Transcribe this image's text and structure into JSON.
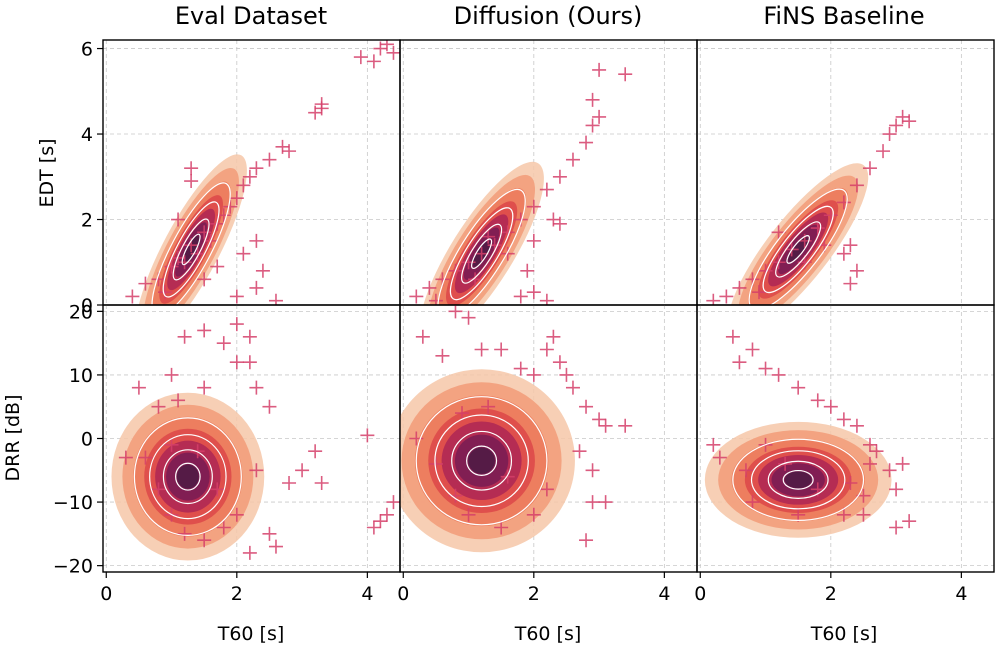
{
  "colors": {
    "density_levels": [
      "#f6c7a8",
      "#f2a07e",
      "#ec7c5d",
      "#de4d4b",
      "#b22a53",
      "#7e1e53",
      "#521b46"
    ],
    "contour_line": "#ffffff",
    "marker": "#d5406a",
    "grid": "#c8c8c8"
  },
  "chart_data": [
    {
      "type": "scatter",
      "panel": "eval-edt",
      "title": "Eval Dataset",
      "xlabel": "",
      "ylabel": "EDT [s]",
      "xlim": [
        -0.05,
        4.5
      ],
      "ylim": [
        0,
        6.2
      ],
      "xticks": [
        0,
        2,
        4
      ],
      "yticks": [
        0,
        2,
        4,
        6
      ],
      "grid": true,
      "density": {
        "center": [
          1.3,
          1.3
        ],
        "spread": [
          0.45,
          0.55
        ],
        "angle_deg": 62,
        "levels": 7
      },
      "points": [
        [
          0.4,
          0.2
        ],
        [
          0.6,
          0.5
        ],
        [
          0.8,
          0.6
        ],
        [
          1.0,
          0.9
        ],
        [
          1.1,
          1.1
        ],
        [
          1.2,
          1.0
        ],
        [
          1.3,
          1.4
        ],
        [
          1.4,
          1.2
        ],
        [
          1.5,
          1.7
        ],
        [
          1.6,
          1.5
        ],
        [
          1.7,
          1.9
        ],
        [
          1.8,
          2.1
        ],
        [
          1.9,
          2.3
        ],
        [
          2.0,
          2.5
        ],
        [
          2.1,
          2.8
        ],
        [
          2.2,
          3.0
        ],
        [
          2.3,
          3.2
        ],
        [
          2.5,
          3.4
        ],
        [
          2.7,
          3.7
        ],
        [
          2.8,
          3.6
        ],
        [
          1.3,
          3.2
        ],
        [
          1.3,
          2.9
        ],
        [
          1.1,
          2.0
        ],
        [
          2.3,
          1.5
        ],
        [
          2.4,
          0.8
        ],
        [
          2.3,
          0.4
        ],
        [
          2.6,
          0.1
        ],
        [
          2.0,
          0.2
        ],
        [
          3.2,
          4.5
        ],
        [
          3.3,
          4.7
        ],
        [
          3.3,
          4.6
        ],
        [
          3.9,
          5.8
        ],
        [
          4.1,
          5.7
        ],
        [
          4.2,
          6.0
        ],
        [
          4.3,
          6.1
        ],
        [
          4.4,
          5.9
        ],
        [
          0.9,
          0.3
        ],
        [
          1.5,
          0.6
        ],
        [
          1.7,
          0.9
        ],
        [
          2.1,
          1.2
        ]
      ]
    },
    {
      "type": "scatter",
      "panel": "diffusion-edt",
      "title": "Diffusion (Ours)",
      "xlabel": "",
      "ylabel": "",
      "xlim": [
        -0.05,
        4.5
      ],
      "ylim": [
        0,
        6.2
      ],
      "xticks": [
        0,
        2,
        4
      ],
      "yticks": [
        0,
        2,
        4,
        6
      ],
      "grid": true,
      "density": {
        "center": [
          1.2,
          1.2
        ],
        "spread": [
          0.5,
          0.55
        ],
        "angle_deg": 58,
        "levels": 7
      },
      "points": [
        [
          0.2,
          0.2
        ],
        [
          0.4,
          0.4
        ],
        [
          0.6,
          0.6
        ],
        [
          0.8,
          0.8
        ],
        [
          1.0,
          1.0
        ],
        [
          1.2,
          1.2
        ],
        [
          1.4,
          1.4
        ],
        [
          1.6,
          1.7
        ],
        [
          1.8,
          2.0
        ],
        [
          2.0,
          2.3
        ],
        [
          2.2,
          2.7
        ],
        [
          2.4,
          3.0
        ],
        [
          2.6,
          3.4
        ],
        [
          2.8,
          3.8
        ],
        [
          2.9,
          4.2
        ],
        [
          3.0,
          4.4
        ],
        [
          2.9,
          4.8
        ],
        [
          3.0,
          5.5
        ],
        [
          3.4,
          5.4
        ],
        [
          2.3,
          2.0
        ],
        [
          2.4,
          1.9
        ],
        [
          2.0,
          1.5
        ],
        [
          1.9,
          0.8
        ],
        [
          2.0,
          0.3
        ],
        [
          1.8,
          0.2
        ],
        [
          2.2,
          0.1
        ],
        [
          0.5,
          0.1
        ],
        [
          1.3,
          1.6
        ],
        [
          1.6,
          1.2
        ],
        [
          1.1,
          0.6
        ]
      ]
    },
    {
      "type": "scatter",
      "panel": "fins-edt",
      "title": "FiNS Baseline",
      "xlabel": "",
      "ylabel": "",
      "xlim": [
        -0.05,
        4.5
      ],
      "ylim": [
        0,
        6.2
      ],
      "xticks": [
        0,
        2,
        4
      ],
      "yticks": [
        0,
        2,
        4,
        6
      ],
      "grid": true,
      "density": {
        "center": [
          1.5,
          1.3
        ],
        "spread": [
          0.5,
          0.55
        ],
        "angle_deg": 52,
        "levels": 7
      },
      "points": [
        [
          0.2,
          0.1
        ],
        [
          0.4,
          0.2
        ],
        [
          0.6,
          0.4
        ],
        [
          0.8,
          0.6
        ],
        [
          1.0,
          0.8
        ],
        [
          1.2,
          1.0
        ],
        [
          1.4,
          1.3
        ],
        [
          1.6,
          1.5
        ],
        [
          1.8,
          1.8
        ],
        [
          2.0,
          2.1
        ],
        [
          2.2,
          2.4
        ],
        [
          2.4,
          2.8
        ],
        [
          2.6,
          3.2
        ],
        [
          2.8,
          3.6
        ],
        [
          2.9,
          4.0
        ],
        [
          3.0,
          4.2
        ],
        [
          3.1,
          4.4
        ],
        [
          3.2,
          4.3
        ],
        [
          2.3,
          1.4
        ],
        [
          2.2,
          1.2
        ],
        [
          2.4,
          0.8
        ],
        [
          2.3,
          0.5
        ],
        [
          1.2,
          1.7
        ],
        [
          0.9,
          0.3
        ],
        [
          1.9,
          1.4
        ],
        [
          1.6,
          1.0
        ]
      ]
    },
    {
      "type": "scatter",
      "panel": "eval-drr",
      "title": "",
      "xlabel": "T60 [s]",
      "ylabel": "DRR [dB]",
      "xlim": [
        -0.05,
        4.5
      ],
      "ylim": [
        -21,
        21
      ],
      "xticks": [
        0,
        2,
        4
      ],
      "yticks": [
        -20,
        -10,
        0,
        10,
        20
      ],
      "grid": true,
      "density": {
        "center": [
          1.25,
          -6.0
        ],
        "spread": [
          0.45,
          5.5
        ],
        "angle_deg": 0,
        "levels": 7
      },
      "points": [
        [
          0.3,
          -3
        ],
        [
          0.5,
          8
        ],
        [
          0.8,
          5
        ],
        [
          1.0,
          10
        ],
        [
          1.2,
          16
        ],
        [
          1.5,
          17
        ],
        [
          1.8,
          15
        ],
        [
          2.0,
          18
        ],
        [
          2.2,
          16
        ],
        [
          2.0,
          12
        ],
        [
          2.2,
          12
        ],
        [
          2.3,
          8
        ],
        [
          2.5,
          5
        ],
        [
          1.5,
          8
        ],
        [
          1.1,
          6
        ],
        [
          0.6,
          -3
        ],
        [
          0.8,
          -8
        ],
        [
          1.0,
          -12
        ],
        [
          1.2,
          -15
        ],
        [
          1.5,
          -16
        ],
        [
          1.8,
          -14
        ],
        [
          2.0,
          -12
        ],
        [
          2.2,
          -18
        ],
        [
          2.5,
          -15
        ],
        [
          2.6,
          -17
        ],
        [
          2.8,
          -7
        ],
        [
          3.0,
          -5
        ],
        [
          3.2,
          -2
        ],
        [
          3.3,
          -7
        ],
        [
          4.0,
          0.5
        ],
        [
          4.1,
          -14
        ],
        [
          4.2,
          -13
        ],
        [
          4.3,
          -12
        ],
        [
          4.4,
          -10
        ],
        [
          1.4,
          -2
        ],
        [
          1.0,
          -1
        ],
        [
          1.7,
          -8
        ],
        [
          2.3,
          -5
        ]
      ]
    },
    {
      "type": "scatter",
      "panel": "diffusion-drr",
      "title": "",
      "xlabel": "T60 [s]",
      "ylabel": "",
      "xlim": [
        -0.05,
        4.5
      ],
      "ylim": [
        -21,
        21
      ],
      "xticks": [
        0,
        2,
        4
      ],
      "yticks": [
        -20,
        -10,
        0,
        10,
        20
      ],
      "grid": true,
      "density": {
        "center": [
          1.2,
          -3.5
        ],
        "spread": [
          0.55,
          6.0
        ],
        "angle_deg": 0,
        "levels": 7
      },
      "points": [
        [
          0.3,
          16
        ],
        [
          0.6,
          13
        ],
        [
          0.8,
          20
        ],
        [
          1.0,
          19
        ],
        [
          1.2,
          14
        ],
        [
          1.5,
          14
        ],
        [
          1.8,
          11
        ],
        [
          2.0,
          10
        ],
        [
          2.2,
          14
        ],
        [
          2.3,
          16
        ],
        [
          2.4,
          12
        ],
        [
          2.5,
          10
        ],
        [
          2.6,
          8
        ],
        [
          2.8,
          5
        ],
        [
          3.0,
          3
        ],
        [
          3.1,
          2
        ],
        [
          3.4,
          2
        ],
        [
          2.7,
          -2
        ],
        [
          2.9,
          -5
        ],
        [
          2.9,
          -10
        ],
        [
          3.1,
          -10
        ],
        [
          2.8,
          -16
        ],
        [
          0.2,
          0
        ],
        [
          0.5,
          -4
        ],
        [
          0.8,
          -9
        ],
        [
          1.0,
          -12
        ],
        [
          1.5,
          -14
        ],
        [
          2.0,
          -12
        ],
        [
          1.3,
          5
        ],
        [
          0.9,
          4
        ],
        [
          1.6,
          -6
        ],
        [
          2.2,
          -8
        ]
      ]
    },
    {
      "type": "scatter",
      "panel": "fins-drr",
      "title": "",
      "xlabel": "T60 [s]",
      "ylabel": "",
      "xlim": [
        -0.05,
        4.5
      ],
      "ylim": [
        -21,
        21
      ],
      "xticks": [
        0,
        2,
        4
      ],
      "yticks": [
        -20,
        -10,
        0,
        10,
        20
      ],
      "grid": true,
      "density": {
        "center": [
          1.5,
          -6.5
        ],
        "spread": [
          0.55,
          3.8
        ],
        "angle_deg": 0,
        "levels": 7
      },
      "points": [
        [
          0.5,
          16
        ],
        [
          0.6,
          12
        ],
        [
          0.8,
          14
        ],
        [
          1.0,
          11
        ],
        [
          1.2,
          10
        ],
        [
          1.5,
          8
        ],
        [
          1.8,
          6
        ],
        [
          2.0,
          5
        ],
        [
          2.2,
          3
        ],
        [
          2.4,
          2
        ],
        [
          2.6,
          -1
        ],
        [
          2.7,
          -2
        ],
        [
          2.6,
          -4
        ],
        [
          2.9,
          -5
        ],
        [
          3.0,
          -8
        ],
        [
          3.1,
          -4
        ],
        [
          3.0,
          -14
        ],
        [
          3.2,
          -13
        ],
        [
          2.5,
          -12
        ],
        [
          2.2,
          -12
        ],
        [
          1.5,
          -12
        ],
        [
          0.8,
          -10
        ],
        [
          0.3,
          -3
        ],
        [
          0.2,
          -1
        ],
        [
          0.7,
          -5
        ],
        [
          1.3,
          -4
        ],
        [
          1.8,
          -8
        ],
        [
          2.3,
          -7
        ],
        [
          2.5,
          -9
        ],
        [
          1.0,
          -1
        ]
      ]
    }
  ]
}
